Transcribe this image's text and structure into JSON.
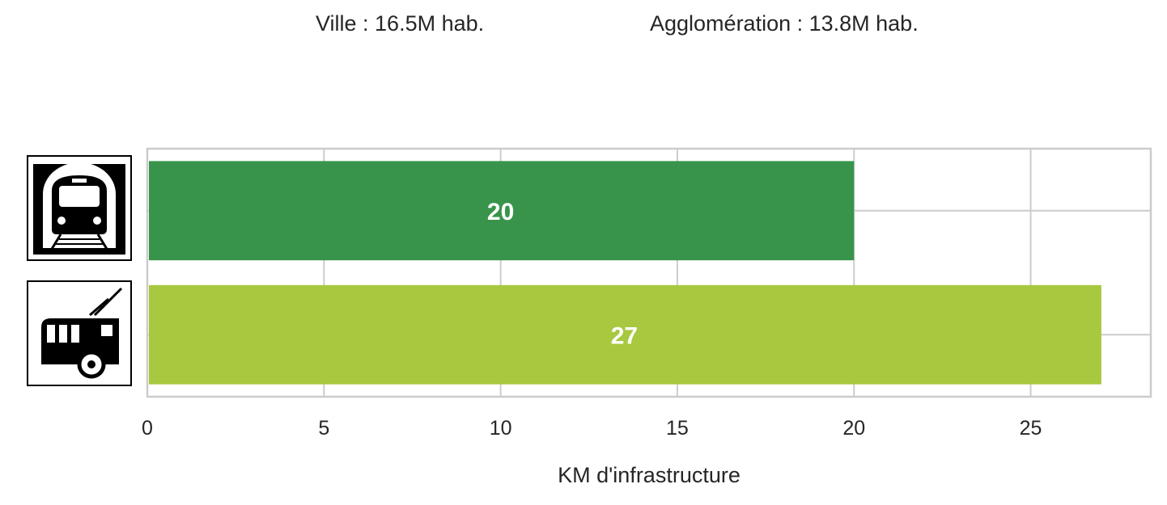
{
  "header": {
    "ville": "Ville : 16.5M hab.",
    "agglomeration": "Agglomération : 13.8M hab."
  },
  "chart_data": {
    "type": "bar",
    "orientation": "horizontal",
    "categories": [
      "metro-icon",
      "trolleybus-icon"
    ],
    "values": [
      20,
      27
    ],
    "colors": [
      "#38944a",
      "#a8c83f"
    ],
    "xlabel": "KM d'infrastructure",
    "ylabel": "",
    "xlim": [
      0,
      28.4
    ],
    "xticks": [
      0,
      5,
      10,
      15,
      20,
      25
    ],
    "grid": true
  }
}
